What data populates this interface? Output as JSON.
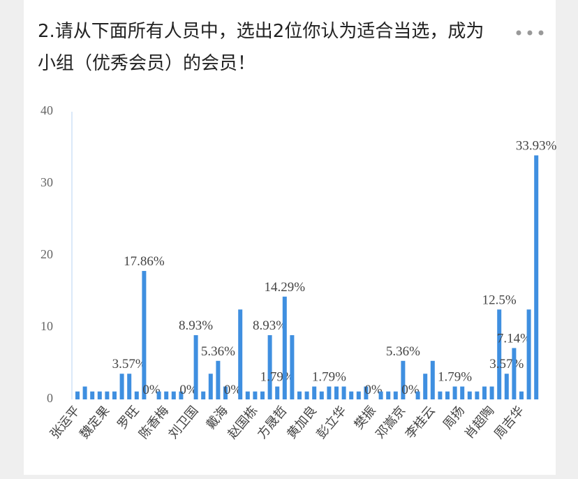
{
  "chart_data": {
    "type": "bar",
    "title": "2.请从下面所有人员中，选出2位你认为适合当选，成为小组（优秀会员）的会员！",
    "categories": [
      "张运平",
      null,
      null,
      null,
      "魏定果",
      null,
      null,
      null,
      "罗旺",
      null,
      null,
      null,
      "陈香梅",
      null,
      null,
      null,
      "刘卫国",
      null,
      null,
      null,
      "戴海",
      null,
      null,
      null,
      "赵国栋",
      null,
      null,
      null,
      "方晟哲",
      null,
      null,
      null,
      "黄加良",
      null,
      null,
      null,
      "彭立华",
      null,
      null,
      null,
      "樊振",
      null,
      null,
      null,
      "邓嵩京",
      null,
      null,
      null,
      "李桂云",
      null,
      null,
      null,
      "周扬",
      null,
      null,
      null,
      "肖超陶",
      null,
      null,
      null,
      "周吉华",
      null,
      null
    ],
    "values": [
      1.1,
      1.79,
      1.1,
      1.1,
      1.1,
      1.1,
      3.57,
      3.57,
      1.1,
      17.86,
      0,
      1.1,
      1.1,
      1.1,
      1.1,
      0,
      8.93,
      1.1,
      3.57,
      5.36,
      1.79,
      0,
      12.5,
      1.1,
      1.1,
      1.1,
      8.93,
      1.79,
      14.29,
      8.93,
      1.1,
      1.1,
      1.79,
      1.1,
      1.79,
      1.79,
      1.79,
      1.1,
      1.1,
      1.79,
      0,
      1.1,
      1.1,
      1.1,
      5.36,
      0,
      1.1,
      3.57,
      5.36,
      1.1,
      1.1,
      1.79,
      1.79,
      1.1,
      1.1,
      1.79,
      1.79,
      12.5,
      3.57,
      7.14,
      1.1,
      12.5,
      33.93
    ],
    "value_labels": [
      null,
      null,
      null,
      null,
      null,
      null,
      null,
      "3.57%",
      null,
      "17.86%",
      "0%",
      null,
      null,
      null,
      null,
      "0%",
      "8.93%",
      null,
      null,
      "5.36%",
      null,
      "0%",
      null,
      null,
      null,
      null,
      "8.93%",
      "1.79%",
      "14.29%",
      null,
      null,
      null,
      null,
      null,
      "1.79%",
      null,
      null,
      null,
      null,
      null,
      "0%",
      null,
      null,
      null,
      "5.36%",
      "0%",
      null,
      null,
      null,
      null,
      null,
      "1.79%",
      null,
      null,
      null,
      null,
      null,
      "12.5%",
      "3.57%",
      "7.14%",
      null,
      null,
      "33.93%"
    ],
    "color": "#3f8fe0",
    "ylim": [
      0,
      40
    ],
    "yticks": [
      0,
      10,
      20,
      30,
      40
    ]
  }
}
